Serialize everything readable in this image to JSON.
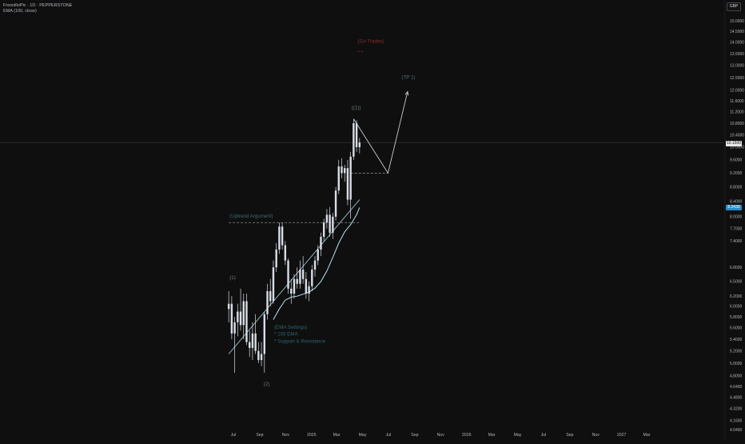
{
  "header": {
    "title": "FresnilloPlc · 1D · PEPPERSTONE",
    "indicator": "EMA (100, close)",
    "currency": "GBP"
  },
  "price_tags": {
    "last": "10.1500",
    "ema": "8.2430"
  },
  "colors": {
    "background": "#0f0f0f",
    "candle": "#d9dde6",
    "trend_line": "#8fb3c2",
    "ema_line": "#b7e3ee",
    "wave_label": "#6e7a7f",
    "target_text": "#8a2a2a",
    "tp_text": "#4a6f78",
    "uptrend_text": "#3f6a73",
    "note_text": "#2d6470"
  },
  "chart_data": {
    "type": "candlestick",
    "series": [
      {
        "name": "FresnilloPlc",
        "values": [
          {
            "t": "2024-06-20",
            "o": 5.95,
            "h": 6.3,
            "l": 5.7,
            "c": 6.05
          },
          {
            "t": "2024-06-27",
            "o": 6.05,
            "h": 6.2,
            "l": 5.4,
            "c": 5.5
          },
          {
            "t": "2024-07-04",
            "o": 5.5,
            "h": 5.8,
            "l": 4.85,
            "c": 5.7
          },
          {
            "t": "2024-07-11",
            "o": 5.7,
            "h": 6.05,
            "l": 5.45,
            "c": 5.9
          },
          {
            "t": "2024-07-18",
            "o": 5.9,
            "h": 6.35,
            "l": 5.55,
            "c": 5.65
          },
          {
            "t": "2024-07-25",
            "o": 5.65,
            "h": 6.25,
            "l": 5.4,
            "c": 6.1
          },
          {
            "t": "2024-08-01",
            "o": 6.1,
            "h": 6.25,
            "l": 5.3,
            "c": 5.35
          },
          {
            "t": "2024-08-08",
            "o": 5.35,
            "h": 5.55,
            "l": 5.1,
            "c": 5.25
          },
          {
            "t": "2024-08-15",
            "o": 5.25,
            "h": 5.7,
            "l": 5.05,
            "c": 5.5
          },
          {
            "t": "2024-08-22",
            "o": 5.5,
            "h": 5.85,
            "l": 5.15,
            "c": 5.2
          },
          {
            "t": "2024-08-29",
            "o": 5.2,
            "h": 5.35,
            "l": 5.0,
            "c": 5.05
          },
          {
            "t": "2024-09-05",
            "o": 5.05,
            "h": 5.35,
            "l": 4.95,
            "c": 5.15
          },
          {
            "t": "2024-09-12",
            "o": 5.15,
            "h": 5.9,
            "l": 4.85,
            "c": 5.85
          },
          {
            "t": "2024-09-19",
            "o": 5.85,
            "h": 6.45,
            "l": 5.75,
            "c": 6.3
          },
          {
            "t": "2024-09-26",
            "o": 6.3,
            "h": 6.55,
            "l": 6.0,
            "c": 6.1
          },
          {
            "t": "2024-10-03",
            "o": 6.1,
            "h": 6.95,
            "l": 6.05,
            "c": 6.8
          },
          {
            "t": "2024-10-10",
            "o": 6.8,
            "h": 7.35,
            "l": 6.7,
            "c": 7.2
          },
          {
            "t": "2024-10-17",
            "o": 7.2,
            "h": 7.85,
            "l": 7.1,
            "c": 7.75
          },
          {
            "t": "2024-10-24",
            "o": 7.75,
            "h": 7.85,
            "l": 7.2,
            "c": 7.3
          },
          {
            "t": "2024-10-31",
            "o": 7.3,
            "h": 7.4,
            "l": 6.85,
            "c": 6.95
          },
          {
            "t": "2024-11-07",
            "o": 6.95,
            "h": 7.0,
            "l": 6.25,
            "c": 6.35
          },
          {
            "t": "2024-11-14",
            "o": 6.35,
            "h": 6.55,
            "l": 6.05,
            "c": 6.25
          },
          {
            "t": "2024-11-21",
            "o": 6.25,
            "h": 6.65,
            "l": 6.15,
            "c": 6.55
          },
          {
            "t": "2024-11-28",
            "o": 6.55,
            "h": 6.8,
            "l": 6.35,
            "c": 6.45
          },
          {
            "t": "2024-12-05",
            "o": 6.45,
            "h": 6.95,
            "l": 6.35,
            "c": 6.75
          },
          {
            "t": "2024-12-12",
            "o": 6.75,
            "h": 7.05,
            "l": 6.45,
            "c": 6.55
          },
          {
            "t": "2024-12-19",
            "o": 6.55,
            "h": 6.7,
            "l": 6.15,
            "c": 6.25
          },
          {
            "t": "2024-12-26",
            "o": 6.25,
            "h": 6.5,
            "l": 6.1,
            "c": 6.4
          },
          {
            "t": "2025-01-02",
            "o": 6.4,
            "h": 6.85,
            "l": 6.3,
            "c": 6.75
          },
          {
            "t": "2025-01-09",
            "o": 6.75,
            "h": 7.05,
            "l": 6.6,
            "c": 6.95
          },
          {
            "t": "2025-01-16",
            "o": 6.95,
            "h": 7.3,
            "l": 6.85,
            "c": 7.2
          },
          {
            "t": "2025-01-23",
            "o": 7.2,
            "h": 7.6,
            "l": 7.05,
            "c": 7.5
          },
          {
            "t": "2025-01-30",
            "o": 7.5,
            "h": 7.95,
            "l": 7.4,
            "c": 7.85
          },
          {
            "t": "2025-02-06",
            "o": 7.85,
            "h": 8.2,
            "l": 7.7,
            "c": 8.05
          },
          {
            "t": "2025-02-13",
            "o": 8.05,
            "h": 8.25,
            "l": 7.5,
            "c": 7.6
          },
          {
            "t": "2025-02-20",
            "o": 7.6,
            "h": 8.1,
            "l": 7.45,
            "c": 8.0
          },
          {
            "t": "2025-02-27",
            "o": 8.0,
            "h": 8.8,
            "l": 7.9,
            "c": 8.7
          },
          {
            "t": "2025-03-06",
            "o": 8.7,
            "h": 9.6,
            "l": 8.6,
            "c": 9.4
          },
          {
            "t": "2025-03-13",
            "o": 9.4,
            "h": 9.65,
            "l": 9.05,
            "c": 9.2
          },
          {
            "t": "2025-03-20",
            "o": 9.2,
            "h": 9.45,
            "l": 8.95,
            "c": 9.35
          },
          {
            "t": "2025-03-27",
            "o": 9.35,
            "h": 9.6,
            "l": 8.3,
            "c": 8.45
          },
          {
            "t": "2025-04-03",
            "o": 8.45,
            "h": 9.85,
            "l": 7.95,
            "c": 9.7
          },
          {
            "t": "2025-04-10",
            "o": 9.7,
            "h": 10.95,
            "l": 9.6,
            "c": 10.8
          },
          {
            "t": "2025-04-17",
            "o": 10.8,
            "h": 10.9,
            "l": 9.85,
            "c": 10.0
          },
          {
            "t": "2025-04-24",
            "o": 10.0,
            "h": 10.3,
            "l": 9.8,
            "c": 10.15
          }
        ]
      }
    ],
    "ema": [
      {
        "t": "2024-10-03",
        "v": 5.75
      },
      {
        "t": "2024-10-17",
        "v": 5.95
      },
      {
        "t": "2024-10-31",
        "v": 6.12
      },
      {
        "t": "2024-11-14",
        "v": 6.18
      },
      {
        "t": "2024-11-28",
        "v": 6.2
      },
      {
        "t": "2024-12-12",
        "v": 6.24
      },
      {
        "t": "2024-12-26",
        "v": 6.28
      },
      {
        "t": "2025-01-09",
        "v": 6.36
      },
      {
        "t": "2025-01-23",
        "v": 6.5
      },
      {
        "t": "2025-02-06",
        "v": 6.72
      },
      {
        "t": "2025-02-20",
        "v": 7.02
      },
      {
        "t": "2025-03-06",
        "v": 7.35
      },
      {
        "t": "2025-03-20",
        "v": 7.62
      },
      {
        "t": "2025-04-03",
        "v": 7.8
      },
      {
        "t": "2025-04-17",
        "v": 8.05
      },
      {
        "t": "2025-04-24",
        "v": 8.24
      }
    ],
    "trend_line": [
      {
        "t": "2024-06-20",
        "v": 5.15
      },
      {
        "t": "2025-04-24",
        "v": 8.45
      }
    ],
    "uptrend_level": {
      "from": "2024-06-20",
      "to": "2025-04-24",
      "v": 7.85
    },
    "projection": [
      {
        "t": "2025-04-10",
        "v": 10.95
      },
      {
        "t": "2025-06-30",
        "v": 9.2
      },
      {
        "t": "2025-08-15",
        "v": 11.95
      }
    ],
    "support_level": {
      "from": "2025-04-03",
      "to": "2025-06-30",
      "v": 9.2
    },
    "target_level": {
      "from": "2025-04-20",
      "to": "2025-05-05",
      "v": 13.6
    },
    "annotations": [
      {
        "text": "(1)",
        "t": "2024-06-22",
        "v": 6.55
      },
      {
        "text": "(2)",
        "t": "2024-09-10",
        "v": 4.65
      },
      {
        "text": "((1))",
        "t": "2025-04-05",
        "v": 11.3
      },
      {
        "text": "(Uptrend Argument)",
        "t": "2024-06-22",
        "v": 7.98
      },
      {
        "text": "(TP 1)",
        "t": "2025-08-01",
        "v": 12.45
      },
      {
        "text": "(Go Trades)",
        "t": "2025-04-20",
        "v": 13.98
      },
      {
        "text": "(EMA Settings)",
        "t": "2024-10-05",
        "v": 5.58
      },
      {
        "text": "* 100 EMA",
        "t": "2024-10-05",
        "v": 5.46
      },
      {
        "text": "* Support & Resistance",
        "t": "2024-10-05",
        "v": 5.34
      }
    ],
    "y_axis": {
      "scale": "log",
      "ticks": [
        "15.0000",
        "14.5000",
        "14.0000",
        "13.5000",
        "13.0000",
        "12.5000",
        "12.0000",
        "11.6000",
        "11.2000",
        "10.8000",
        "10.4000",
        "10.0000",
        "9.6000",
        "9.2000",
        "8.8000",
        "8.4000",
        "8.0000",
        "7.7000",
        "7.4000",
        "6.8000",
        "6.5000",
        "6.2000",
        "6.0000",
        "5.8000",
        "5.6000",
        "5.4000",
        "5.2000",
        "5.0000",
        "4.8000",
        "4.6400",
        "4.4800",
        "4.3200",
        "4.1600",
        "4.0400"
      ]
    },
    "x_axis": {
      "ticks": [
        {
          "label": "Jul",
          "t": "2024-07-01"
        },
        {
          "label": "Sep",
          "t": "2024-09-01"
        },
        {
          "label": "Nov",
          "t": "2024-11-01"
        },
        {
          "label": "2025",
          "t": "2025-01-01"
        },
        {
          "label": "Mar",
          "t": "2025-03-01"
        },
        {
          "label": "May",
          "t": "2025-05-01"
        },
        {
          "label": "Jul",
          "t": "2025-07-01"
        },
        {
          "label": "Sep",
          "t": "2025-09-01"
        },
        {
          "label": "Nov",
          "t": "2025-11-01"
        },
        {
          "label": "2026",
          "t": "2026-01-01"
        },
        {
          "label": "Mar",
          "t": "2026-03-01"
        },
        {
          "label": "May",
          "t": "2026-05-01"
        },
        {
          "label": "Jul",
          "t": "2026-07-01"
        },
        {
          "label": "Sep",
          "t": "2026-09-01"
        },
        {
          "label": "Nov",
          "t": "2026-11-01"
        },
        {
          "label": "2027",
          "t": "2027-01-01"
        },
        {
          "label": "Mar",
          "t": "2027-03-01"
        }
      ]
    }
  }
}
